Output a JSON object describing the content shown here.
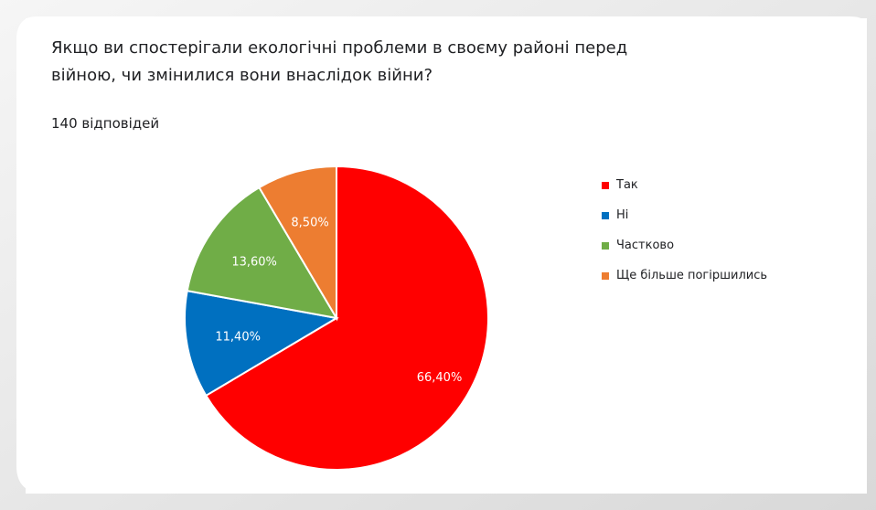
{
  "question": {
    "title_line1": "Якщо ви спостерігали екологічні проблеми в своєму районі перед",
    "title_line2": "війною, чи змінилися вони внаслідок війни?",
    "responses": "140 відповідей"
  },
  "chart_data": {
    "type": "pie",
    "start_angle_deg": 0,
    "direction": "clockwise",
    "slices": [
      {
        "name": "Так",
        "value": 66.4,
        "label": "66,40%",
        "color": "#ff0000"
      },
      {
        "name": "Ні",
        "value": 11.4,
        "label": "11,40%",
        "color": "#0070c0"
      },
      {
        "name": "Частково",
        "value": 13.6,
        "label": "13,60%",
        "color": "#70ad47"
      },
      {
        "name": "Ще більше погіршились",
        "value": 8.5,
        "label": "8,50%",
        "color": "#ed7d31"
      }
    ],
    "legend_position": "right"
  }
}
